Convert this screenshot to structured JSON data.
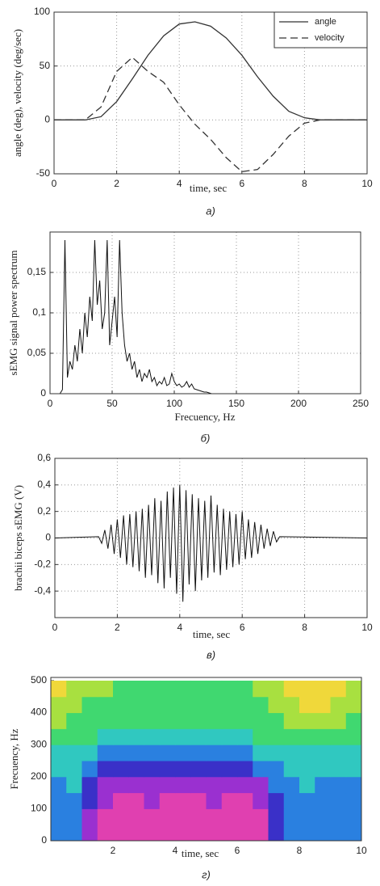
{
  "chart_data": [
    {
      "type": "line",
      "caption": "а)",
      "xlabel": "time, sec",
      "ylabel": "angle (deg), velocity (deg/sec)",
      "x": [
        0,
        0.5,
        1,
        1.5,
        2,
        2.5,
        3,
        3.5,
        4,
        4.5,
        5,
        5.5,
        6,
        6.5,
        7,
        7.5,
        8,
        8.5,
        9,
        9.5,
        10
      ],
      "series": [
        {
          "name": "angle",
          "color": "#333333",
          "line_style": "solid",
          "values": [
            0,
            0,
            0,
            3,
            17,
            38,
            60,
            78,
            89,
            91,
            87,
            76,
            60,
            40,
            22,
            8,
            2,
            0,
            0,
            0,
            0
          ]
        },
        {
          "name": "velocity",
          "color": "#333333",
          "line_style": "dashed",
          "values": [
            0,
            0,
            0,
            12,
            45,
            58,
            45,
            35,
            14,
            -4,
            -18,
            -35,
            -48,
            -46,
            -32,
            -15,
            -3,
            0,
            0,
            0,
            0
          ]
        }
      ],
      "xlim": [
        0,
        10
      ],
      "ylim": [
        -50,
        100
      ],
      "xticks": [
        0,
        2,
        4,
        6,
        8,
        10
      ],
      "yticks": [
        -50,
        0,
        50,
        100
      ],
      "grid": true,
      "legend": "upper right"
    },
    {
      "type": "line",
      "caption": "б)",
      "xlabel": "Frecuency, Hz",
      "ylabel": "sEMG signal power spectrum",
      "x": [
        8,
        10,
        12,
        14,
        16,
        18,
        20,
        22,
        24,
        26,
        28,
        30,
        32,
        34,
        36,
        38,
        40,
        42,
        44,
        46,
        48,
        50,
        52,
        54,
        56,
        58,
        60,
        62,
        64,
        66,
        68,
        70,
        72,
        74,
        76,
        78,
        80,
        82,
        84,
        86,
        88,
        90,
        92,
        94,
        96,
        98,
        100,
        102,
        104,
        106,
        108,
        110,
        112,
        114,
        116,
        118,
        120,
        122,
        124,
        126,
        128,
        130
      ],
      "series": [
        {
          "color": "#111111",
          "line_style": "solid",
          "values": [
            0,
            0.005,
            0.19,
            0.02,
            0.04,
            0.03,
            0.06,
            0.04,
            0.08,
            0.05,
            0.1,
            0.07,
            0.12,
            0.09,
            0.19,
            0.11,
            0.14,
            0.08,
            0.1,
            0.19,
            0.06,
            0.09,
            0.12,
            0.07,
            0.19,
            0.1,
            0.06,
            0.04,
            0.05,
            0.03,
            0.04,
            0.02,
            0.03,
            0.015,
            0.025,
            0.02,
            0.03,
            0.015,
            0.02,
            0.01,
            0.015,
            0.012,
            0.02,
            0.01,
            0.012,
            0.025,
            0.015,
            0.01,
            0.012,
            0.008,
            0.01,
            0.015,
            0.008,
            0.012,
            0.006,
            0.005,
            0.004,
            0.003,
            0.002,
            0.002,
            0.001,
            0
          ]
        }
      ],
      "xlim": [
        0,
        250
      ],
      "ylim": [
        0,
        0.2
      ],
      "xticks": [
        0,
        50,
        100,
        150,
        200,
        250
      ],
      "yticks": [
        0,
        {
          "value": 0.05,
          "label": "0,05"
        },
        {
          "value": 0.1,
          "label": "0,1"
        },
        {
          "value": 0.15,
          "label": "0,15"
        }
      ],
      "grid": true
    },
    {
      "type": "line",
      "caption": "в)",
      "xlabel": "time, sec",
      "ylabel": "brachii biceps sEMG (V)",
      "x": [
        0,
        1.4,
        1.5,
        1.6,
        1.7,
        1.8,
        1.9,
        2.0,
        2.1,
        2.2,
        2.3,
        2.4,
        2.5,
        2.6,
        2.7,
        2.8,
        2.9,
        3.0,
        3.1,
        3.2,
        3.3,
        3.4,
        3.5,
        3.6,
        3.7,
        3.8,
        3.9,
        4.0,
        4.1,
        4.2,
        4.3,
        4.4,
        4.5,
        4.6,
        4.7,
        4.8,
        4.9,
        5.0,
        5.1,
        5.2,
        5.3,
        5.4,
        5.5,
        5.6,
        5.7,
        5.8,
        5.9,
        6.0,
        6.1,
        6.2,
        6.3,
        6.4,
        6.5,
        6.6,
        6.7,
        6.8,
        6.9,
        7.0,
        7.1,
        7.2,
        10
      ],
      "series": [
        {
          "color": "#111111",
          "line_style": "solid",
          "values": [
            0,
            0.01,
            -0.04,
            0.06,
            -0.08,
            0.1,
            -0.12,
            0.14,
            -0.15,
            0.17,
            -0.2,
            0.18,
            -0.22,
            0.2,
            -0.25,
            0.22,
            -0.3,
            0.25,
            -0.28,
            0.3,
            -0.34,
            0.28,
            -0.38,
            0.35,
            -0.3,
            0.38,
            -0.42,
            0.4,
            -0.48,
            0.36,
            -0.35,
            0.33,
            -0.4,
            0.3,
            -0.32,
            0.28,
            -0.3,
            0.32,
            -0.26,
            0.25,
            -0.28,
            0.22,
            -0.24,
            0.2,
            -0.22,
            0.18,
            -0.2,
            0.2,
            -0.16,
            0.14,
            -0.15,
            0.12,
            -0.12,
            0.1,
            -0.08,
            0.07,
            -0.06,
            0.05,
            -0.03,
            0.01,
            0
          ]
        }
      ],
      "xlim": [
        0,
        10
      ],
      "ylim": [
        -0.6,
        0.6
      ],
      "xticks": [
        0,
        2,
        4,
        6,
        8,
        10
      ],
      "yticks": [
        {
          "value": 0.6,
          "label": "0,6"
        },
        {
          "value": 0.4,
          "label": "0,4"
        },
        {
          "value": 0.2,
          "label": "0,2"
        },
        0,
        {
          "value": -0.2,
          "label": "-0,2"
        },
        {
          "value": -0.4,
          "label": "-0,4"
        }
      ],
      "grid": true
    },
    {
      "type": "heatmap",
      "caption": "г)",
      "xlabel": "time, sec",
      "ylabel": "Frecuency, Hz",
      "x_edges": [
        0,
        0.5,
        1,
        1.5,
        2,
        2.5,
        3,
        3.5,
        4,
        4.5,
        5,
        5.5,
        6,
        6.5,
        7,
        7.5,
        8,
        8.5,
        9,
        9.5,
        10
      ],
      "y_edges": [
        0,
        50,
        100,
        150,
        200,
        250,
        300,
        350,
        400,
        450,
        500
      ],
      "colorscale": [
        "#f0d83a",
        "#a8e040",
        "#40d870",
        "#30c8c0",
        "#2a80e0",
        "#3a30c8",
        "#9a30d0",
        "#e040b0"
      ],
      "z": [
        [
          4,
          4,
          6,
          7,
          7,
          7,
          7,
          7,
          7,
          7,
          7,
          7,
          7,
          7,
          5,
          4,
          4,
          4,
          4,
          4
        ],
        [
          4,
          4,
          6,
          7,
          7,
          7,
          7,
          7,
          7,
          7,
          7,
          7,
          7,
          7,
          5,
          4,
          4,
          4,
          4,
          4
        ],
        [
          4,
          4,
          5,
          6,
          7,
          7,
          6,
          7,
          7,
          7,
          6,
          7,
          7,
          6,
          5,
          4,
          4,
          4,
          4,
          4
        ],
        [
          4,
          3,
          5,
          6,
          6,
          6,
          6,
          6,
          6,
          6,
          6,
          6,
          6,
          6,
          4,
          4,
          3,
          4,
          4,
          4
        ],
        [
          3,
          3,
          4,
          5,
          5,
          5,
          5,
          5,
          5,
          5,
          5,
          5,
          5,
          4,
          4,
          3,
          3,
          3,
          3,
          3
        ],
        [
          3,
          3,
          3,
          4,
          4,
          4,
          4,
          4,
          4,
          4,
          4,
          4,
          4,
          3,
          3,
          3,
          3,
          3,
          3,
          3
        ],
        [
          2,
          2,
          2,
          3,
          3,
          3,
          3,
          3,
          3,
          3,
          3,
          3,
          3,
          2,
          2,
          2,
          2,
          2,
          2,
          2
        ],
        [
          1,
          2,
          2,
          2,
          2,
          2,
          2,
          2,
          2,
          2,
          2,
          2,
          2,
          2,
          2,
          1,
          1,
          1,
          1,
          2
        ],
        [
          1,
          1,
          2,
          2,
          2,
          2,
          2,
          2,
          2,
          2,
          2,
          2,
          2,
          2,
          1,
          1,
          0,
          0,
          1,
          1
        ],
        [
          0,
          1,
          1,
          1,
          2,
          2,
          2,
          2,
          2,
          2,
          2,
          2,
          2,
          1,
          1,
          0,
          0,
          0,
          0,
          1
        ]
      ],
      "xlim": [
        0,
        10
      ],
      "ylim": [
        0,
        510
      ],
      "xticks": [
        2,
        4,
        6,
        8,
        10
      ],
      "yticks": [
        0,
        100,
        200,
        300,
        400,
        500
      ],
      "grid": false
    }
  ]
}
